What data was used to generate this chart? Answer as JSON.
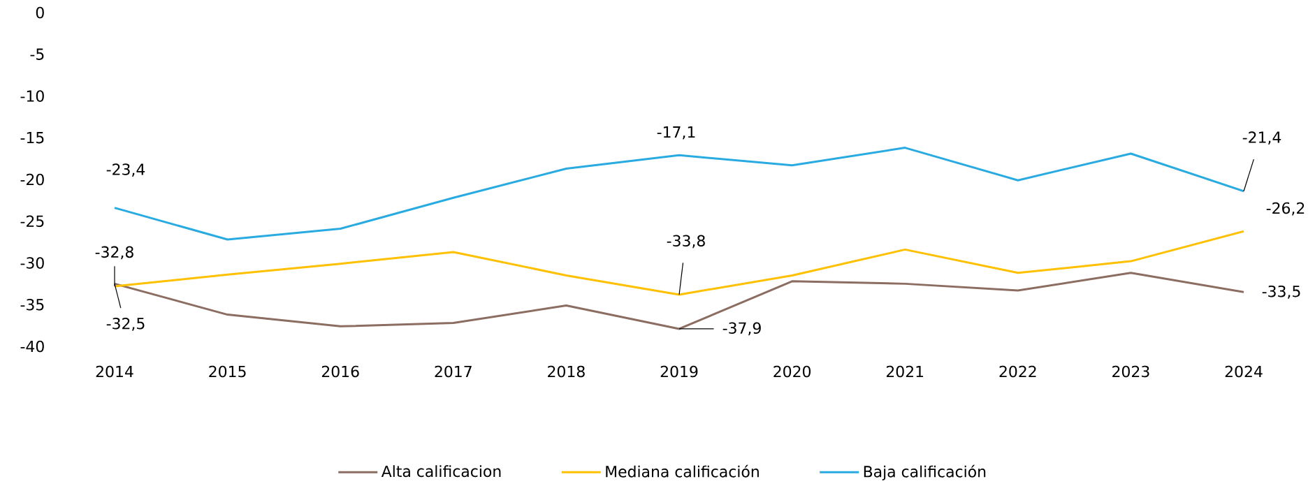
{
  "chart_data": {
    "type": "line",
    "categories": [
      "2014",
      "2015",
      "2016",
      "2017",
      "2018",
      "2019",
      "2020",
      "2021",
      "2022",
      "2023",
      "2024"
    ],
    "series": [
      {
        "name": "Alta calificacion",
        "color": "#8c6d62",
        "values": [
          -32.5,
          -36.2,
          -37.6,
          -37.2,
          -35.1,
          -37.9,
          -32.2,
          -32.5,
          -33.3,
          -31.2,
          -33.5
        ]
      },
      {
        "name": "Mediana calificación",
        "color": "#ffc000",
        "values": [
          -32.8,
          -31.4,
          -30.1,
          -28.7,
          -31.5,
          -33.8,
          -31.5,
          -28.4,
          -31.2,
          -29.8,
          -26.2
        ]
      },
      {
        "name": "Baja calificación",
        "color": "#29abe2",
        "values": [
          -23.4,
          -27.2,
          -25.9,
          -22.2,
          -18.7,
          -17.1,
          -18.3,
          -16.2,
          -20.1,
          -16.9,
          -21.4
        ]
      }
    ],
    "ylim": [
      -40,
      0
    ],
    "yticks": [
      -40,
      -35,
      -30,
      -25,
      -20,
      -15,
      -10,
      -5,
      0
    ],
    "legend": "bottom",
    "annotations": [
      {
        "text": "-23,4",
        "x": "2014",
        "y": -23.4
      },
      {
        "text": "-32,8",
        "x": "2014",
        "y": -32.8
      },
      {
        "text": "-32,5",
        "x": "2014",
        "y": -32.5
      },
      {
        "text": "-17,1",
        "x": "2019",
        "y": -17.1
      },
      {
        "text": "-33,8",
        "x": "2019",
        "y": -33.8
      },
      {
        "text": "-37,9",
        "x": "2019",
        "y": -37.9
      },
      {
        "text": "-21,4",
        "x": "2024",
        "y": -21.4
      },
      {
        "text": "-26,2",
        "x": "2024",
        "y": -26.2
      },
      {
        "text": "-33,5",
        "x": "2024",
        "y": -33.5
      }
    ]
  }
}
